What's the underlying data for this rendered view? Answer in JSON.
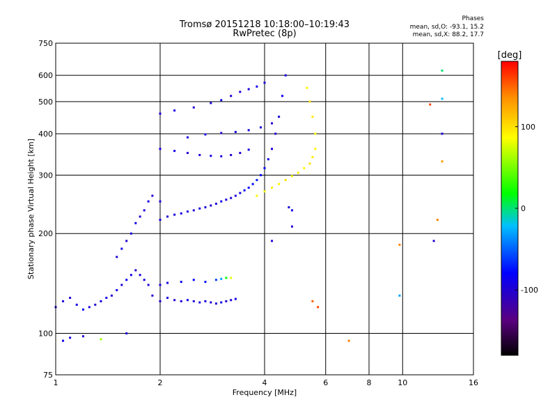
{
  "header": {
    "title_line1": "Tromsø 20151218 10:18:00–10:19:43",
    "title_line2": "RwPretec (8p)"
  },
  "phases_box": {
    "heading": "Phases",
    "line1": "mean, sd,O: -93.1, 15.2",
    "line2": "mean, sd,X:  88.2, 17.7"
  },
  "chart_data": {
    "type": "scatter",
    "title": "Tromsø 20151218 10:18:00–10:19:43",
    "subtitle": "RwPretec (8p)",
    "xlabel": "Frequency [MHz]",
    "ylabel": "Stationary phase Virtual Height [km]",
    "x_scale": "log",
    "y_scale": "log",
    "xlim": [
      1,
      16
    ],
    "ylim": [
      75,
      750
    ],
    "x_ticks": [
      1,
      2,
      4,
      6,
      8,
      10,
      16
    ],
    "y_ticks": [
      75,
      100,
      200,
      300,
      400,
      500,
      600,
      750
    ],
    "grid": true,
    "colorbar": {
      "label": "[deg]",
      "range": [
        -180,
        180
      ],
      "ticks": [
        100,
        0,
        -100
      ],
      "colors": [
        "#000000",
        "#5a0080",
        "#0000ff",
        "#00bfff",
        "#00ff00",
        "#ffff00",
        "#ff8c00",
        "#ff0000"
      ]
    },
    "series": [
      {
        "points": [
          [
            1.0,
            120,
            -90
          ],
          [
            1.05,
            125,
            -95
          ],
          [
            1.1,
            128,
            -100
          ],
          [
            1.15,
            122,
            -90
          ],
          [
            1.2,
            118,
            -85
          ],
          [
            1.25,
            120,
            -95
          ],
          [
            1.3,
            122,
            -100
          ],
          [
            1.35,
            125,
            -90
          ],
          [
            1.4,
            128,
            -95
          ],
          [
            1.45,
            130,
            -100
          ],
          [
            1.5,
            135,
            -90
          ],
          [
            1.55,
            140,
            -95
          ],
          [
            1.6,
            145,
            -85
          ],
          [
            1.65,
            150,
            -90
          ],
          [
            1.7,
            155,
            -100
          ],
          [
            1.75,
            150,
            -95
          ],
          [
            1.8,
            145,
            -90
          ],
          [
            1.85,
            140,
            -95
          ],
          [
            1.9,
            130,
            -100
          ],
          [
            2.0,
            125,
            -95
          ],
          [
            2.1,
            128,
            -90
          ],
          [
            2.2,
            126,
            -100
          ],
          [
            2.3,
            125,
            -95
          ],
          [
            2.4,
            126,
            -90
          ],
          [
            2.5,
            125,
            -100
          ],
          [
            2.6,
            124,
            -95
          ],
          [
            2.7,
            125,
            -90
          ],
          [
            2.8,
            124,
            -100
          ],
          [
            2.9,
            123,
            -95
          ],
          [
            3.0,
            124,
            -90
          ],
          [
            3.1,
            125,
            -100
          ],
          [
            3.2,
            126,
            -95
          ],
          [
            3.3,
            127,
            -90
          ]
        ]
      },
      {
        "points": [
          [
            1.5,
            170,
            -95
          ],
          [
            1.55,
            180,
            -90
          ],
          [
            1.6,
            190,
            -100
          ],
          [
            1.65,
            200,
            -95
          ],
          [
            1.7,
            215,
            -90
          ],
          [
            1.75,
            225,
            -100
          ],
          [
            1.8,
            235,
            -95
          ],
          [
            1.85,
            250,
            -90
          ],
          [
            1.9,
            260,
            -100
          ],
          [
            2.0,
            250,
            -95
          ]
        ]
      },
      {
        "points": [
          [
            2.0,
            140,
            -95
          ],
          [
            2.1,
            142,
            -90
          ],
          [
            2.3,
            143,
            -85
          ],
          [
            2.5,
            145,
            -80
          ],
          [
            2.7,
            143,
            -75
          ],
          [
            2.9,
            145,
            -60
          ],
          [
            3.0,
            146,
            -30
          ],
          [
            3.1,
            147,
            20
          ],
          [
            3.2,
            147,
            80
          ]
        ]
      },
      {
        "points": [
          [
            2.0,
            220,
            -95
          ],
          [
            2.1,
            225,
            -100
          ],
          [
            2.2,
            228,
            -95
          ],
          [
            2.3,
            230,
            -90
          ],
          [
            2.4,
            233,
            -95
          ],
          [
            2.5,
            235,
            -100
          ],
          [
            2.6,
            238,
            -90
          ],
          [
            2.7,
            240,
            -95
          ],
          [
            2.8,
            243,
            -100
          ],
          [
            2.9,
            246,
            -95
          ],
          [
            3.0,
            250,
            -90
          ],
          [
            3.1,
            253,
            -95
          ],
          [
            3.2,
            256,
            -100
          ],
          [
            3.3,
            260,
            -95
          ],
          [
            3.4,
            265,
            -90
          ],
          [
            3.5,
            270,
            -85
          ],
          [
            3.6,
            275,
            -80
          ],
          [
            3.7,
            282,
            -75
          ],
          [
            3.8,
            290,
            -70
          ],
          [
            3.9,
            300,
            -80
          ],
          [
            4.0,
            315,
            -85
          ],
          [
            4.1,
            335,
            -90
          ],
          [
            4.2,
            360,
            -95
          ],
          [
            4.3,
            400,
            -100
          ],
          [
            4.4,
            450,
            -95
          ],
          [
            4.5,
            520,
            -90
          ],
          [
            4.6,
            600,
            -95
          ]
        ]
      },
      {
        "points": [
          [
            3.8,
            260,
            90
          ],
          [
            4.0,
            268,
            85
          ],
          [
            4.2,
            275,
            95
          ],
          [
            4.4,
            282,
            90
          ],
          [
            4.6,
            290,
            100
          ],
          [
            4.8,
            298,
            85
          ],
          [
            5.0,
            305,
            95
          ],
          [
            5.2,
            315,
            90
          ],
          [
            5.4,
            325,
            100
          ],
          [
            5.5,
            340,
            95
          ],
          [
            5.6,
            360,
            90
          ],
          [
            5.6,
            400,
            85
          ],
          [
            5.5,
            450,
            95
          ],
          [
            5.4,
            500,
            100
          ],
          [
            5.3,
            550,
            90
          ]
        ]
      },
      {
        "points": [
          [
            2.0,
            360,
            -95
          ],
          [
            2.2,
            355,
            -90
          ],
          [
            2.4,
            350,
            -100
          ],
          [
            2.6,
            345,
            -95
          ],
          [
            2.8,
            343,
            -90
          ],
          [
            3.0,
            342,
            -95
          ],
          [
            3.2,
            345,
            -100
          ],
          [
            3.4,
            350,
            -95
          ],
          [
            3.6,
            358,
            -90
          ]
        ]
      },
      {
        "points": [
          [
            2.4,
            390,
            -95
          ],
          [
            2.7,
            398,
            -90
          ],
          [
            3.0,
            402,
            -100
          ],
          [
            3.3,
            405,
            -95
          ],
          [
            3.6,
            410,
            -90
          ],
          [
            3.9,
            418,
            -95
          ],
          [
            4.2,
            430,
            -100
          ]
        ]
      },
      {
        "points": [
          [
            2.0,
            460,
            -95
          ],
          [
            2.2,
            470,
            -90
          ],
          [
            2.5,
            480,
            -100
          ],
          [
            2.8,
            495,
            -95
          ],
          [
            3.0,
            505,
            -90
          ],
          [
            3.2,
            520,
            -95
          ],
          [
            3.4,
            535,
            -100
          ],
          [
            3.6,
            545,
            -95
          ],
          [
            3.8,
            555,
            -90
          ],
          [
            4.0,
            570,
            -95
          ]
        ]
      },
      {
        "points": [
          [
            1.05,
            95,
            -90
          ],
          [
            1.1,
            97,
            -95
          ],
          [
            1.2,
            98,
            -100
          ],
          [
            1.35,
            96,
            60
          ],
          [
            1.6,
            100,
            -95
          ],
          [
            4.2,
            190,
            -100
          ],
          [
            4.7,
            240,
            -95
          ],
          [
            4.8,
            235,
            -90
          ],
          [
            4.8,
            210,
            -100
          ],
          [
            5.5,
            125,
            150
          ],
          [
            5.7,
            120,
            160
          ],
          [
            7.0,
            95,
            140
          ],
          [
            9.8,
            130,
            -30
          ],
          [
            9.8,
            185,
            140
          ],
          [
            12.0,
            490,
            160
          ],
          [
            12.3,
            190,
            -100
          ],
          [
            12.6,
            220,
            140
          ],
          [
            13.0,
            620,
            0
          ],
          [
            13.0,
            510,
            -20
          ],
          [
            13.0,
            400,
            -95
          ],
          [
            13.0,
            330,
            130
          ]
        ]
      }
    ]
  }
}
